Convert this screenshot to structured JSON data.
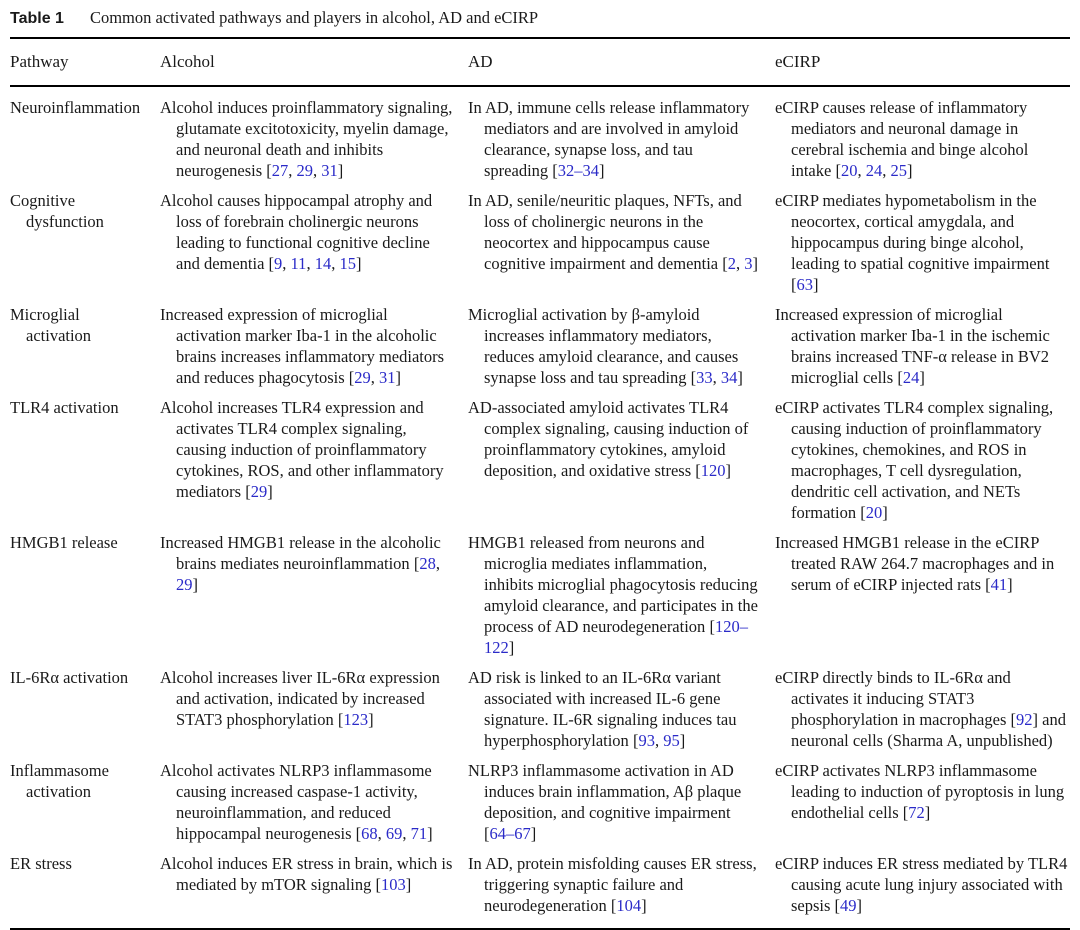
{
  "colors": {
    "background": "#ffffff",
    "text": "#1a1a1a",
    "rule": "#000000",
    "citation": "#2a2ac8"
  },
  "table": {
    "label": "Table 1",
    "caption": "Common activated pathways and players in alcohol, AD and eCIRP",
    "columns": [
      "Pathway",
      "Alcohol",
      "AD",
      "eCIRP"
    ],
    "rows": [
      {
        "pathway": "Neuroinflammation",
        "alcohol": "Alcohol induces proinflammatory signaling, glutamate excitotoxicity, myelin damage, and neuronal death and inhibits neurogenesis [27, 29, 31]",
        "ad": "In AD, immune cells release inflammatory mediators and are involved in amyloid clearance, synapse loss, and tau spreading [32–34]",
        "ecirp": "eCIRP causes release of inflammatory mediators and neuronal damage in cerebral ischemia and binge alcohol intake [20, 24, 25]"
      },
      {
        "pathway": "Cognitive dysfunction",
        "alcohol": "Alcohol causes hippocampal atrophy and loss of forebrain cholinergic neurons leading to functional cognitive decline and dementia [9, 11, 14, 15]",
        "ad": "In AD, senile/neuritic plaques, NFTs, and loss of cholinergic neurons in the neocortex and hippocampus cause cognitive impairment and dementia [2, 3]",
        "ecirp": "eCIRP mediates hypometabolism in the neocortex, cortical amygdala, and hippocampus during binge alcohol, leading to spatial cognitive impairment [63]"
      },
      {
        "pathway": "Microglial activation",
        "alcohol": "Increased expression of microglial activation marker Iba-1 in the alcoholic brains increases inflammatory mediators and reduces phagocytosis [29, 31]",
        "ad": "Microglial activation by β-amyloid increases inflammatory mediators, reduces amyloid clearance, and causes synapse loss and tau spreading [33, 34]",
        "ecirp": "Increased expression of microglial activation marker Iba-1 in the ischemic brains increased TNF-α release in BV2 microglial cells [24]"
      },
      {
        "pathway": "TLR4 activation",
        "alcohol": "Alcohol increases TLR4 expression and activates TLR4 complex signaling, causing induction of proinflammatory cytokines, ROS, and other inflammatory mediators [29]",
        "ad": "AD-associated amyloid activates TLR4 complex signaling, causing induction of proinflammatory cytokines, amyloid deposition, and oxidative stress [120]",
        "ecirp": "eCIRP activates TLR4 complex signaling, causing induction of proinflammatory cytokines, chemokines, and ROS in macrophages, T cell dysregulation, dendritic cell activation, and NETs formation [20]"
      },
      {
        "pathway": "HMGB1 release",
        "alcohol": "Increased HMGB1 release in the alcoholic brains mediates neuroinflammation [28, 29]",
        "ad": "HMGB1 released from neurons and microglia mediates inflammation, inhibits microglial phagocytosis reducing amyloid clearance, and participates in the process of AD neurodegeneration [120–122]",
        "ecirp": "Increased HMGB1 release in the eCIRP treated RAW 264.7 macrophages and in serum of eCIRP injected rats [41]"
      },
      {
        "pathway": "IL-6Rα activation",
        "alcohol": "Alcohol increases liver IL-6Rα expression and activation, indicated by increased STAT3 phosphorylation [123]",
        "ad": "AD risk is linked to an IL-6Rα variant associated with increased IL-6 gene signature. IL-6R signaling induces tau hyperphosphorylation [93, 95]",
        "ecirp": "eCIRP directly binds to IL-6Rα and activates it inducing STAT3 phosphorylation in macrophages [92] and neuronal cells (Sharma A, unpublished)"
      },
      {
        "pathway": "Inflammasome activation",
        "alcohol": "Alcohol activates NLRP3 inflammasome causing increased caspase-1 activity, neuroinflammation, and reduced hippocampal neurogenesis [68, 69, 71]",
        "ad": "NLRP3 inflammasome activation in AD induces brain inflammation, Aβ plaque deposition, and cognitive impairment [64–67]",
        "ecirp": "eCIRP activates NLRP3 inflammasome leading to induction of pyroptosis in lung endothelial cells [72]"
      },
      {
        "pathway": "ER stress",
        "alcohol": "Alcohol induces ER stress in brain, which is mediated by mTOR signaling [103]",
        "ad": "In AD, protein misfolding causes ER stress, triggering synaptic failure and neurodegeneration [104]",
        "ecirp": "eCIRP induces ER stress mediated by TLR4 causing acute lung injury associated with sepsis [49]"
      }
    ]
  }
}
